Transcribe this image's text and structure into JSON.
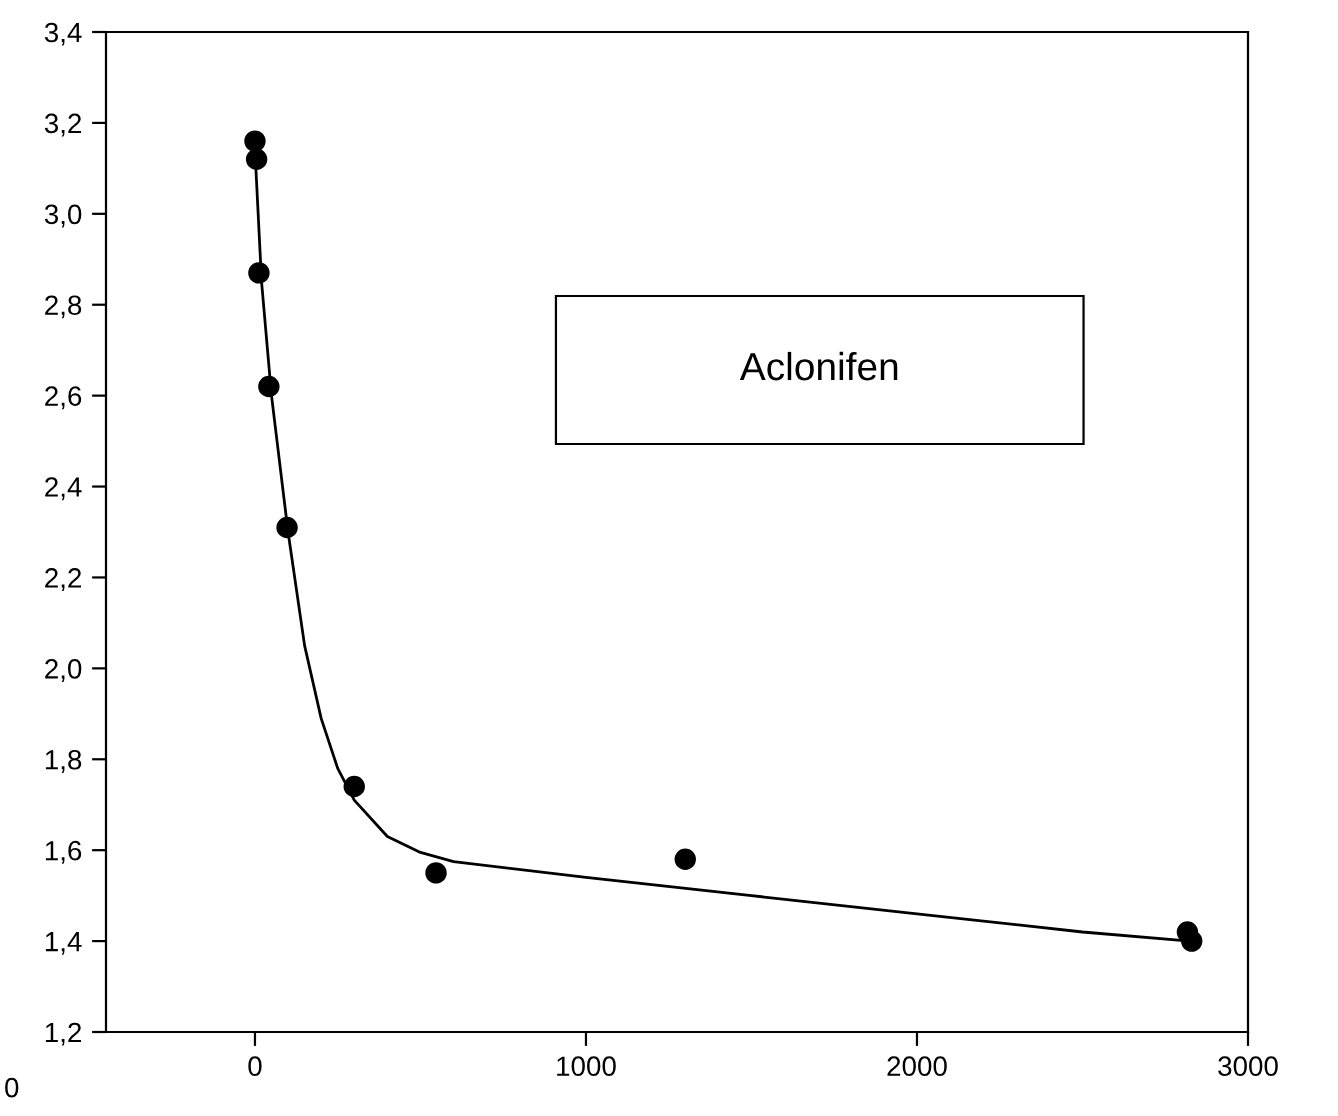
{
  "chart_data": {
    "type": "scatter",
    "annotations": [
      "Aclonifen",
      "0"
    ],
    "xlim": [
      -450,
      3000
    ],
    "xticks": [
      0,
      1000,
      2000,
      3000
    ],
    "ylim": [
      1.2,
      3.4
    ],
    "yticks": [
      {
        "value": 1.2,
        "label": "1,2"
      },
      {
        "value": 1.4,
        "label": "1,4"
      },
      {
        "value": 1.6,
        "label": "1,6"
      },
      {
        "value": 1.8,
        "label": "1,8"
      },
      {
        "value": 2.0,
        "label": "2,0"
      },
      {
        "value": 2.2,
        "label": "2,2"
      },
      {
        "value": 2.4,
        "label": "2,4"
      },
      {
        "value": 2.6,
        "label": "2,6"
      },
      {
        "value": 2.8,
        "label": "2,8"
      },
      {
        "value": 3.0,
        "label": "3,0"
      },
      {
        "value": 3.2,
        "label": "3,2"
      },
      {
        "value": 3.4,
        "label": "3,4"
      }
    ],
    "grid": false,
    "legend": false,
    "series": [
      {
        "color": "#000000",
        "marker": "circle",
        "x": [
          0,
          5,
          12,
          42,
          97,
          300,
          547,
          1300,
          2817,
          2830
        ],
        "values": [
          3.16,
          3.12,
          2.87,
          2.62,
          2.31,
          1.74,
          1.55,
          1.58,
          1.42,
          1.4
        ]
      },
      {
        "type": "line",
        "color": "#000000",
        "marker": "none",
        "line_style": "solid",
        "x": [
          0,
          20,
          50,
          100,
          150,
          200,
          250,
          300,
          400,
          500,
          600,
          1000,
          1500,
          2000,
          2500,
          2820
        ],
        "values": [
          3.14,
          2.85,
          2.6,
          2.3,
          2.05,
          1.89,
          1.78,
          1.71,
          1.63,
          1.595,
          1.575,
          1.54,
          1.5,
          1.46,
          1.42,
          1.4
        ]
      }
    ]
  }
}
